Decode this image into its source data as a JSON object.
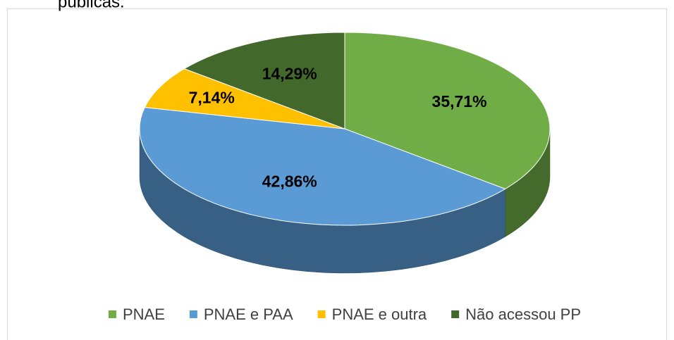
{
  "text_above": "públicas.",
  "chart_data": {
    "type": "pie3d",
    "categories": [
      "PNAE",
      "PNAE e PAA",
      "PNAE e outra",
      "Não acessou PP"
    ],
    "values": [
      35.71,
      42.86,
      7.14,
      14.29
    ],
    "value_labels": [
      "35,71%",
      "42,86%",
      "7,14%",
      "14,29%"
    ],
    "colors": [
      "#70ad47",
      "#5b9bd5",
      "#ffc000",
      "#43682b"
    ],
    "legend": "bottom"
  }
}
